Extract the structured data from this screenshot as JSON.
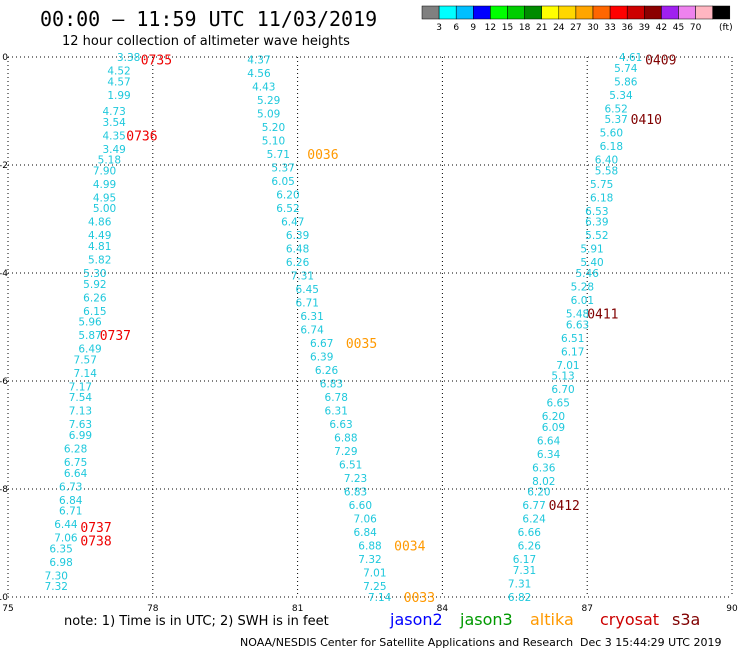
{
  "header": {
    "title": "00:00 – 11:59 UTC 11/03/2019",
    "subtitle": "12 hour collection of altimeter wave heights"
  },
  "colorbar": {
    "labels": [
      "3",
      "6",
      "9",
      "12",
      "15",
      "18",
      "21",
      "24",
      "27",
      "30",
      "33",
      "36",
      "39",
      "42",
      "45",
      "70"
    ],
    "unit": "(ft)",
    "colors": [
      "#808080",
      "#00ffff",
      "#00bfff",
      "#0000ff",
      "#00ff00",
      "#00cd00",
      "#008b00",
      "#ffff00",
      "#ffd700",
      "#ffa500",
      "#ff6600",
      "#ff0000",
      "#cd0000",
      "#8b0000",
      "#a020f0",
      "#ee82ee",
      "#ffb6c1",
      "#000000"
    ]
  },
  "note": "note:  1) Time is in UTC;  2) SWH is in feet",
  "legend": [
    {
      "name": "jason2",
      "color": "#0000ff"
    },
    {
      "name": "jason3",
      "color": "#009900"
    },
    {
      "name": "altika",
      "color": "#ff9900"
    },
    {
      "name": "cryosat",
      "color": "#cc0000"
    },
    {
      "name": "s3a",
      "color": "#800000"
    }
  ],
  "footer": {
    "credit": "NOAA/NESDIS Center for Satellite Applications and Research",
    "timestamp": "Dec  3 15:44:29 UTC 2019"
  },
  "chart_data": {
    "type": "scatter",
    "title": "00:00 – 11:59 UTC 11/03/2019",
    "subtitle": "12 hour collection of altimeter wave heights",
    "xlim": [
      75,
      90
    ],
    "ylim": [
      -10,
      0
    ],
    "xticks": [
      "75",
      "78",
      "81",
      "84",
      "87",
      "90"
    ],
    "yticks": [
      "0",
      "-2",
      "-4",
      "-6",
      "-8",
      "-10"
    ],
    "grid": "dotted",
    "value_color": "#1ec8dc",
    "tracks": [
      {
        "name": "track-1",
        "points": [
          [
            77.5,
            0,
            "3.38"
          ],
          [
            77.3,
            -0.25,
            "4.52"
          ],
          [
            77.3,
            -0.45,
            "4.57"
          ],
          [
            77.3,
            -0.7,
            "1.99"
          ],
          [
            77.2,
            -1.0,
            "4.73"
          ],
          [
            77.2,
            -1.2,
            "3.54"
          ],
          [
            77.2,
            -1.45,
            "4.35"
          ],
          [
            77.2,
            -1.7,
            "3.49"
          ],
          [
            77.1,
            -1.9,
            "5.18"
          ],
          [
            77.0,
            -2.1,
            "7.90"
          ],
          [
            77.0,
            -2.35,
            "4.99"
          ],
          [
            77.0,
            -2.6,
            "4.95"
          ],
          [
            77.0,
            -2.8,
            "5.00"
          ],
          [
            76.9,
            -3.05,
            "4.86"
          ],
          [
            76.9,
            -3.3,
            "4.49"
          ],
          [
            76.9,
            -3.5,
            "4.81"
          ],
          [
            76.9,
            -3.75,
            "5.82"
          ],
          [
            76.8,
            -4.0,
            "5.30"
          ],
          [
            76.8,
            -4.2,
            "5.92"
          ],
          [
            76.8,
            -4.45,
            "6.26"
          ],
          [
            76.8,
            -4.7,
            "6.15"
          ],
          [
            76.7,
            -4.9,
            "5.96"
          ],
          [
            76.7,
            -5.15,
            "5.87"
          ],
          [
            76.7,
            -5.4,
            "6.49"
          ],
          [
            76.6,
            -5.6,
            "7.57"
          ],
          [
            76.6,
            -5.85,
            "7.14"
          ],
          [
            76.5,
            -6.1,
            "7.17"
          ],
          [
            76.5,
            -6.3,
            "7.54"
          ],
          [
            76.5,
            -6.55,
            "7.13"
          ],
          [
            76.5,
            -6.8,
            "7.63"
          ],
          [
            76.5,
            -7.0,
            "6.99"
          ],
          [
            76.4,
            -7.25,
            "6.28"
          ],
          [
            76.4,
            -7.5,
            "6.75"
          ],
          [
            76.4,
            -7.7,
            "6.64"
          ],
          [
            76.3,
            -7.95,
            "6.73"
          ],
          [
            76.3,
            -8.2,
            "6.84"
          ],
          [
            76.3,
            -8.4,
            "6.71"
          ],
          [
            76.2,
            -8.65,
            "6.44"
          ],
          [
            76.2,
            -8.9,
            "7.06"
          ],
          [
            76.1,
            -9.1,
            "6.35"
          ],
          [
            76.1,
            -9.35,
            "6.98"
          ],
          [
            76.0,
            -9.6,
            "7.30"
          ],
          [
            76.0,
            -9.8,
            "7.32"
          ]
        ]
      },
      {
        "name": "track-2",
        "points": [
          [
            80.2,
            -0.05,
            "4.37"
          ],
          [
            80.2,
            -0.3,
            "4.56"
          ],
          [
            80.3,
            -0.55,
            "4.43"
          ],
          [
            80.4,
            -0.8,
            "5.29"
          ],
          [
            80.4,
            -1.05,
            "5.09"
          ],
          [
            80.5,
            -1.3,
            "5.20"
          ],
          [
            80.5,
            -1.55,
            "5.10"
          ],
          [
            80.6,
            -1.8,
            "5.71"
          ],
          [
            80.7,
            -2.05,
            "5.37"
          ],
          [
            80.7,
            -2.3,
            "6.05"
          ],
          [
            80.8,
            -2.55,
            "6.20"
          ],
          [
            80.8,
            -2.8,
            "6.52"
          ],
          [
            80.9,
            -3.05,
            "6.47"
          ],
          [
            81.0,
            -3.3,
            "6.39"
          ],
          [
            81.0,
            -3.55,
            "6.48"
          ],
          [
            81.0,
            -3.8,
            "6.26"
          ],
          [
            81.1,
            -4.05,
            "7.31"
          ],
          [
            81.2,
            -4.3,
            "6.45"
          ],
          [
            81.2,
            -4.55,
            "6.71"
          ],
          [
            81.3,
            -4.8,
            "6.31"
          ],
          [
            81.3,
            -5.05,
            "6.74"
          ],
          [
            81.5,
            -5.3,
            "6.67"
          ],
          [
            81.5,
            -5.55,
            "6.39"
          ],
          [
            81.6,
            -5.8,
            "6.26"
          ],
          [
            81.7,
            -6.05,
            "6.83"
          ],
          [
            81.8,
            -6.3,
            "6.78"
          ],
          [
            81.8,
            -6.55,
            "6.31"
          ],
          [
            81.9,
            -6.8,
            "6.63"
          ],
          [
            82.0,
            -7.05,
            "6.88"
          ],
          [
            82.0,
            -7.3,
            "7.29"
          ],
          [
            82.1,
            -7.55,
            "6.51"
          ],
          [
            82.2,
            -7.8,
            "7.23"
          ],
          [
            82.2,
            -8.05,
            "6.83"
          ],
          [
            82.3,
            -8.3,
            "6.60"
          ],
          [
            82.4,
            -8.55,
            "7.06"
          ],
          [
            82.4,
            -8.8,
            "6.84"
          ],
          [
            82.5,
            -9.05,
            "6.88"
          ],
          [
            82.5,
            -9.3,
            "7.32"
          ],
          [
            82.6,
            -9.55,
            "7.01"
          ],
          [
            82.6,
            -9.8,
            "7.25"
          ],
          [
            82.7,
            -10.0,
            "7.14"
          ]
        ]
      },
      {
        "name": "track-3",
        "points": [
          [
            87.9,
            0,
            "4.61"
          ],
          [
            87.8,
            -0.2,
            "5.74"
          ],
          [
            87.8,
            -0.45,
            "5.86"
          ],
          [
            87.7,
            -0.7,
            "5.34"
          ],
          [
            87.6,
            -0.95,
            "6.52"
          ],
          [
            87.6,
            -1.15,
            "5.37"
          ],
          [
            87.5,
            -1.4,
            "5.60"
          ],
          [
            87.5,
            -1.65,
            "6.18"
          ],
          [
            87.4,
            -1.9,
            "6.40"
          ],
          [
            87.4,
            -2.1,
            "5.58"
          ],
          [
            87.3,
            -2.35,
            "5.75"
          ],
          [
            87.3,
            -2.6,
            "6.18"
          ],
          [
            87.2,
            -2.85,
            "6.53"
          ],
          [
            87.2,
            -3.05,
            "6.39"
          ],
          [
            87.2,
            -3.3,
            "5.52"
          ],
          [
            87.1,
            -3.55,
            "5.91"
          ],
          [
            87.1,
            -3.8,
            "5.40"
          ],
          [
            87.0,
            -4.0,
            "5.46"
          ],
          [
            86.9,
            -4.25,
            "5.28"
          ],
          [
            86.9,
            -4.5,
            "6.01"
          ],
          [
            86.8,
            -4.75,
            "5.48"
          ],
          [
            86.8,
            -4.95,
            "6.63"
          ],
          [
            86.7,
            -5.2,
            "6.51"
          ],
          [
            86.7,
            -5.45,
            "6.17"
          ],
          [
            86.6,
            -5.7,
            "7.01"
          ],
          [
            86.5,
            -5.9,
            "5.13"
          ],
          [
            86.5,
            -6.15,
            "6.70"
          ],
          [
            86.4,
            -6.4,
            "6.65"
          ],
          [
            86.3,
            -6.65,
            "6.20"
          ],
          [
            86.3,
            -6.85,
            "6.09"
          ],
          [
            86.2,
            -7.1,
            "6.64"
          ],
          [
            86.2,
            -7.35,
            "6.34"
          ],
          [
            86.1,
            -7.6,
            "6.36"
          ],
          [
            86.1,
            -7.85,
            "8.02"
          ],
          [
            86.0,
            -8.05,
            "6.20"
          ],
          [
            85.9,
            -8.3,
            "6.77"
          ],
          [
            85.9,
            -8.55,
            "6.24"
          ],
          [
            85.8,
            -8.8,
            "6.66"
          ],
          [
            85.8,
            -9.05,
            "6.26"
          ],
          [
            85.7,
            -9.3,
            "6.17"
          ],
          [
            85.7,
            -9.5,
            "7.31"
          ],
          [
            85.6,
            -9.75,
            "7.31"
          ],
          [
            85.6,
            -10.0,
            "6.82"
          ]
        ]
      }
    ],
    "pass_labels": [
      {
        "text": "0735",
        "x": 77.75,
        "y": -0.05,
        "mission": "cryosat",
        "color": "#ee0000"
      },
      {
        "text": "0736",
        "x": 77.45,
        "y": -1.45,
        "mission": "cryosat",
        "color": "#ee0000"
      },
      {
        "text": "0737",
        "x": 76.9,
        "y": -5.15,
        "mission": "cryosat",
        "color": "#ee0000"
      },
      {
        "text": "0737",
        "x": 76.5,
        "y": -8.7,
        "mission": "cryosat",
        "color": "#ee0000"
      },
      {
        "text": "0738",
        "x": 76.5,
        "y": -8.95,
        "mission": "cryosat",
        "color": "#ee0000"
      },
      {
        "text": "0036",
        "x": 81.2,
        "y": -1.8,
        "mission": "altika",
        "color": "#ff9900"
      },
      {
        "text": "0035",
        "x": 82.0,
        "y": -5.3,
        "mission": "altika",
        "color": "#ff9900"
      },
      {
        "text": "0034",
        "x": 83.0,
        "y": -9.05,
        "mission": "altika",
        "color": "#ff9900"
      },
      {
        "text": "0033",
        "x": 83.2,
        "y": -10.0,
        "mission": "altika",
        "color": "#ff9900"
      },
      {
        "text": "0409",
        "x": 88.2,
        "y": -0.05,
        "mission": "s3a",
        "color": "#800000"
      },
      {
        "text": "0410",
        "x": 87.9,
        "y": -1.15,
        "mission": "s3a",
        "color": "#800000"
      },
      {
        "text": "0411",
        "x": 87.0,
        "y": -4.75,
        "mission": "s3a",
        "color": "#800000"
      },
      {
        "text": "0412",
        "x": 86.2,
        "y": -8.3,
        "mission": "s3a",
        "color": "#800000"
      }
    ]
  }
}
